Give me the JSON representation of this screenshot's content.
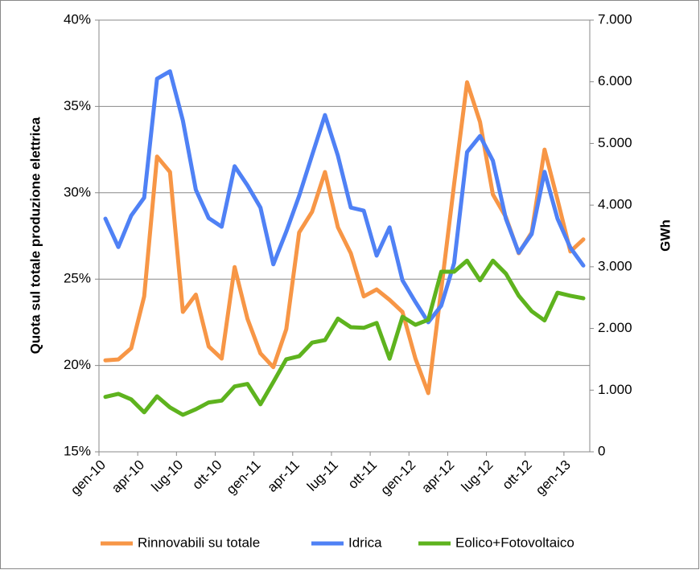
{
  "chart_data": {
    "type": "line",
    "y_label": "Quota sul totale produzione elettrica",
    "y2_label": "GWh",
    "categories": [
      "gen-10",
      null,
      null,
      "apr-10",
      null,
      null,
      "lug-10",
      null,
      null,
      "ott-10",
      null,
      null,
      "gen-11",
      null,
      null,
      "apr-11",
      null,
      null,
      "lug-11",
      null,
      null,
      "ott-11",
      null,
      null,
      "gen-12",
      null,
      null,
      "apr-12",
      null,
      null,
      "lug-12",
      null,
      null,
      "ott-12",
      null,
      null,
      "gen-13",
      null
    ],
    "ylim": [
      15,
      40
    ],
    "yticks": [
      {
        "value": 15,
        "label": "15%"
      },
      {
        "value": 20,
        "label": "20%"
      },
      {
        "value": 25,
        "label": "25%"
      },
      {
        "value": 30,
        "label": "30%"
      },
      {
        "value": 35,
        "label": "35%"
      },
      {
        "value": 40,
        "label": "40%"
      }
    ],
    "y2lim": [
      0,
      7000
    ],
    "y2ticks": [
      0,
      {
        "value": 1000,
        "label": "1.000"
      },
      {
        "value": 2000,
        "label": "2.000"
      },
      {
        "value": 3000,
        "label": "3.000"
      },
      {
        "value": 4000,
        "label": "4.000"
      },
      {
        "value": 5000,
        "label": "5.000"
      },
      {
        "value": 6000,
        "label": "6.000"
      },
      {
        "value": 7000,
        "label": "7.000"
      }
    ],
    "grid": true,
    "legend": "bottom",
    "series": [
      {
        "name": "Rinnovabili su totale",
        "color": "#f79646",
        "values": [
          20.3,
          20.35,
          21.0,
          24.0,
          32.1,
          31.2,
          23.1,
          24.1,
          21.1,
          20.4,
          25.7,
          22.7,
          20.7,
          19.9,
          22.1,
          27.7,
          28.9,
          31.2,
          28.0,
          26.5,
          24.0,
          24.4,
          23.8,
          23.1,
          20.4,
          18.4,
          24.4,
          30.5,
          36.4,
          34.1,
          29.9,
          28.6,
          26.5,
          27.7,
          32.5,
          29.6,
          26.6,
          27.3
        ]
      },
      {
        "name": "Idrica",
        "color": "#4f81f5",
        "axis": "y2",
        "values": [
          3780,
          3320,
          3830,
          4120,
          6050,
          6170,
          5370,
          4250,
          3790,
          3650,
          4630,
          4320,
          3960,
          3040,
          3570,
          4150,
          4810,
          5460,
          4800,
          3960,
          3910,
          3180,
          3640,
          2780,
          2430,
          2100,
          2370,
          3060,
          4860,
          5120,
          4720,
          3780,
          3230,
          3530,
          4540,
          3780,
          3310,
          3020
        ]
      },
      {
        "name": "Eolico+Fotovoltaico",
        "color": "#5eb31e",
        "axis": "y2",
        "values": [
          890,
          940,
          850,
          640,
          900,
          720,
          600,
          690,
          800,
          830,
          1060,
          1100,
          770,
          1130,
          1500,
          1550,
          1770,
          1810,
          2160,
          2020,
          2010,
          2090,
          1510,
          2190,
          2060,
          2140,
          2920,
          2920,
          3100,
          2780,
          3100,
          2890,
          2530,
          2280,
          2130,
          2580,
          2530,
          2490
        ]
      }
    ]
  }
}
